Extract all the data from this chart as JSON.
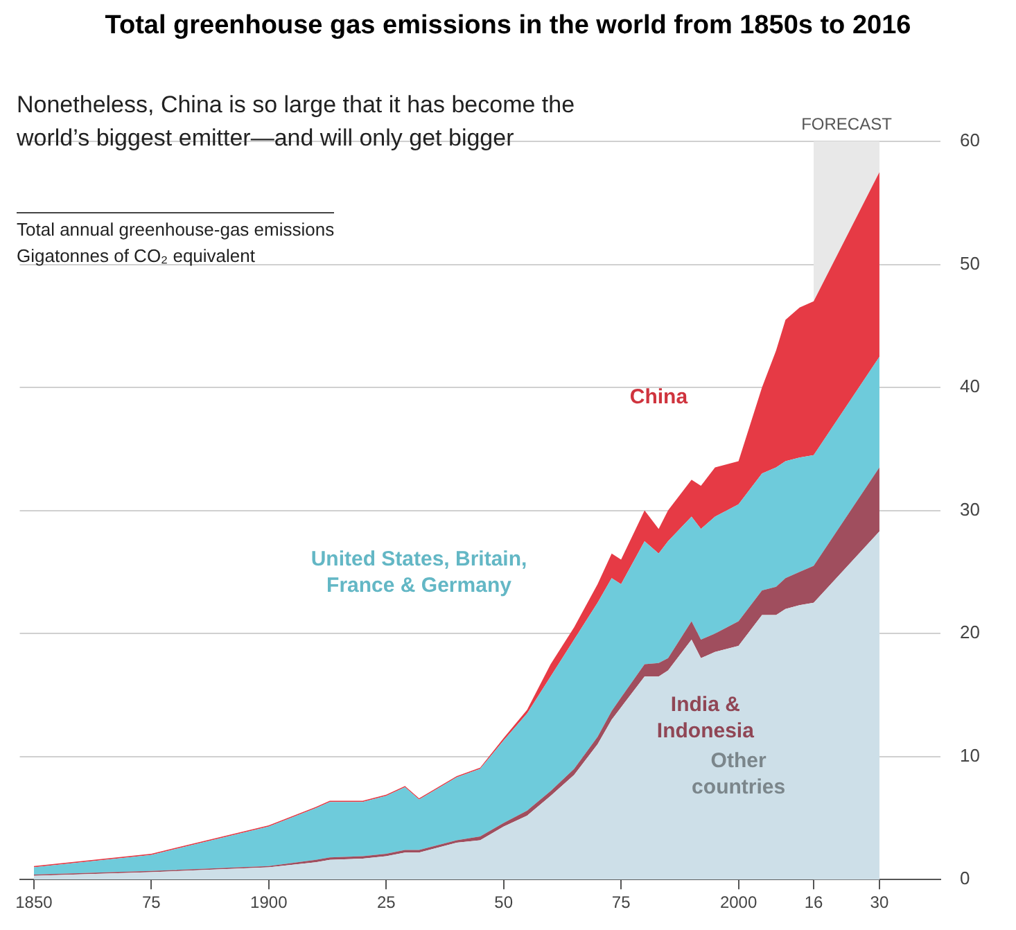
{
  "chart_data": {
    "type": "area",
    "stacked": true,
    "title": "Total greenhouse gas emissions in the world from 1850s to 2016",
    "subtitle": "Nonetheless, China is so large that it has become the world’s biggest emitter—and will only get bigger",
    "ylabel": "Total annual greenhouse-gas emissions\nGigatonnes of CO₂ equivalent",
    "x": [
      1850,
      1875,
      1900,
      1910,
      1913,
      1920,
      1925,
      1929,
      1932,
      1940,
      1945,
      1950,
      1955,
      1960,
      1965,
      1970,
      1973,
      1975,
      1980,
      1983,
      1985,
      1990,
      1992,
      1995,
      2000,
      2005,
      2008,
      2010,
      2013,
      2016,
      2030
    ],
    "series": [
      {
        "name": "Other countries",
        "color": "#cddfe8",
        "values": [
          0.3,
          0.6,
          1.0,
          1.4,
          1.6,
          1.7,
          1.9,
          2.2,
          2.2,
          3.0,
          3.2,
          4.3,
          5.2,
          6.8,
          8.5,
          11,
          13,
          14,
          16.5,
          16.5,
          17,
          19.5,
          18,
          18.5,
          19,
          21.5,
          21.5,
          22,
          22.3,
          22.5,
          28.3
        ]
      },
      {
        "name": "India & Indonesia",
        "color": "#a04e5e",
        "values": [
          0.1,
          0.1,
          0.1,
          0.2,
          0.2,
          0.2,
          0.2,
          0.2,
          0.2,
          0.2,
          0.3,
          0.3,
          0.4,
          0.4,
          0.5,
          0.6,
          0.7,
          0.8,
          1.0,
          1.1,
          1.0,
          1.5,
          1.5,
          1.5,
          2.0,
          2.0,
          2.3,
          2.5,
          2.7,
          3.0,
          5.2
        ]
      },
      {
        "name": "United States, Britain, France & Germany",
        "color": "#6ecbdb",
        "values": [
          0.6,
          1.3,
          3.2,
          4.2,
          4.5,
          4.4,
          4.7,
          5.1,
          4.1,
          5.1,
          5.5,
          6.7,
          7.9,
          9.3,
          10.5,
          10.9,
          10.8,
          9.2,
          10.0,
          8.9,
          9.5,
          8.5,
          9.0,
          9.5,
          9.5,
          9.5,
          9.7,
          9.5,
          9.3,
          9.0,
          9.0
        ]
      },
      {
        "name": "China",
        "color": "#e63a45",
        "values": [
          0.1,
          0.1,
          0.1,
          0.1,
          0.1,
          0.1,
          0.1,
          0.1,
          0.1,
          0.1,
          0.1,
          0.2,
          0.3,
          1.0,
          1.0,
          1.5,
          2.0,
          2.0,
          2.5,
          2.0,
          2.5,
          3.0,
          3.5,
          4.0,
          3.5,
          7.0,
          9.5,
          11.5,
          12.2,
          12.5,
          15.0
        ]
      }
    ],
    "xlim": [
      1847,
      2043
    ],
    "xticks": [
      1850,
      {
        "value": 1875,
        "label": "75"
      },
      1900,
      {
        "value": 1925,
        "label": "25"
      },
      {
        "value": 1950,
        "label": "50"
      },
      {
        "value": 1975,
        "label": "75"
      },
      2000,
      {
        "value": 2016,
        "label": "16"
      },
      {
        "value": 2030,
        "label": "30"
      }
    ],
    "ylim": [
      0,
      60
    ],
    "yticks": [
      0,
      10,
      20,
      30,
      40,
      50,
      60
    ],
    "grid": "y",
    "legend": false,
    "bands": [
      {
        "axis": "x",
        "from": 2016,
        "to": 2030,
        "label": "FORECAST",
        "color": "#e8e8e8"
      }
    ]
  }
}
